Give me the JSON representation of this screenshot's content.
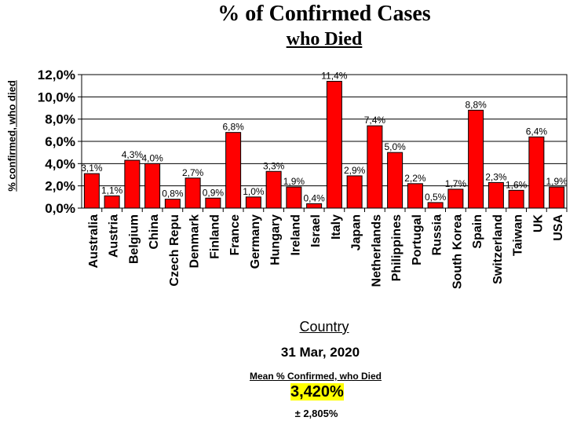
{
  "title": "% of Confirmed Cases",
  "subtitle": "who Died",
  "chart_data": {
    "type": "bar",
    "title": "% of Confirmed Cases who Died",
    "xlabel": "Country",
    "ylabel": "% confirmed, who died",
    "ylim": [
      0,
      12
    ],
    "yticks": [
      "0,0%",
      "2,0%",
      "4,0%",
      "6,0%",
      "8,0%",
      "10,0%",
      "12,0%"
    ],
    "grid": true,
    "bar_color": "#ff0000",
    "categories": [
      "Australia",
      "Austria",
      "Belgium",
      "China",
      "Czech Repu",
      "Denmark",
      "Finland",
      "France",
      "Germany",
      "Hungary",
      "Ireland",
      "Israel",
      "Italy",
      "Japan",
      "Netherlands",
      "Philippines",
      "Portugal",
      "Russia",
      "South Korea",
      "Spain",
      "Switzerland",
      "Taiwan",
      "UK",
      "USA"
    ],
    "values": [
      3.1,
      1.1,
      4.3,
      4.0,
      0.8,
      2.7,
      0.9,
      6.8,
      1.0,
      3.3,
      1.9,
      0.4,
      11.4,
      2.9,
      7.4,
      5.0,
      2.2,
      0.5,
      1.7,
      8.8,
      2.3,
      1.6,
      6.4,
      1.9
    ],
    "value_labels": [
      "3,1%",
      "1,1%",
      "4,3%",
      "4,0%",
      "0,8%",
      "2,7%",
      "0,9%",
      "6,8%",
      "1,0%",
      "3,3%",
      "1,9%",
      "0,4%",
      "11,4%",
      "2,9%",
      "7,4%",
      "5,0%",
      "2,2%",
      "0,5%",
      "1,7%",
      "8,8%",
      "2,3%",
      "1,6%",
      "6,4%",
      "1,9%"
    ]
  },
  "footer": {
    "date": "31 Mar, 2020",
    "mean_label": "Mean % Confirmed, who Died",
    "mean_value": "3,420%",
    "std_value": "± 2,805%"
  }
}
